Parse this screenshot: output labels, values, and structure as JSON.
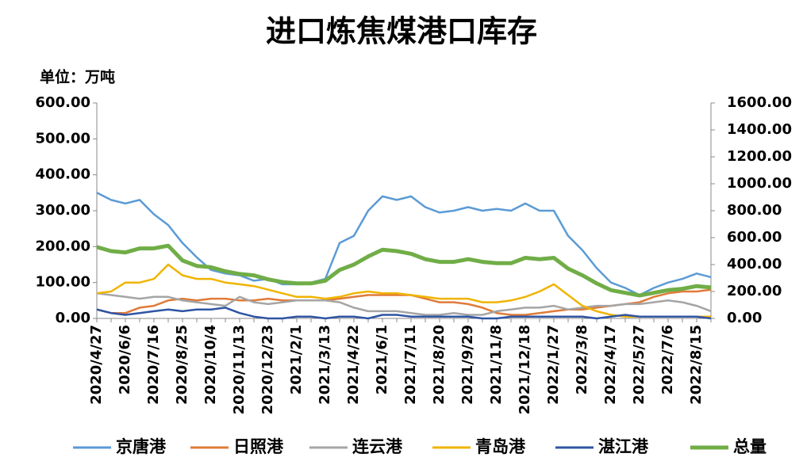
{
  "chart_data": {
    "type": "line",
    "title": "进口炼焦煤港口库存",
    "unit_label": "单位：万吨",
    "legend": "bottom",
    "categories": [
      "2020/4/27",
      null,
      "2020/6/6",
      null,
      "2020/7/16",
      null,
      "2020/8/25",
      null,
      "2020/10/4",
      null,
      "2020/11/13",
      null,
      "2020/12/23",
      null,
      "2021/2/1",
      null,
      "2021/3/13",
      null,
      "2021/4/22",
      null,
      "2021/6/1",
      null,
      "2021/7/11",
      null,
      "2021/8/20",
      null,
      "2021/9/29",
      null,
      "2021/11/8",
      null,
      "2021/12/18",
      null,
      "2022/1/27",
      null,
      "2022/3/8",
      null,
      "2022/4/17",
      null,
      "2022/5/27",
      null,
      "2022/7/6",
      null,
      "2022/8/15",
      null
    ],
    "ylim": [
      0,
      600
    ],
    "yticks": [
      {
        "value": 0,
        "label": "0.00"
      },
      {
        "value": 100,
        "label": "100.00"
      },
      {
        "value": 200,
        "label": "200.00"
      },
      {
        "value": 300,
        "label": "300.00"
      },
      {
        "value": 400,
        "label": "400.00"
      },
      {
        "value": 500,
        "label": "500.00"
      },
      {
        "value": 600,
        "label": "600.00"
      }
    ],
    "y2lim": [
      0,
      1600
    ],
    "y2ticks": [
      {
        "value": 0,
        "label": "0.00"
      },
      {
        "value": 200,
        "label": "200.00"
      },
      {
        "value": 400,
        "label": "400.00"
      },
      {
        "value": 600,
        "label": "600.00"
      },
      {
        "value": 800,
        "label": "800.00"
      },
      {
        "value": 1000,
        "label": "1000.00"
      },
      {
        "value": 1200,
        "label": "1200.00"
      },
      {
        "value": 1400,
        "label": "1400.00"
      },
      {
        "value": 1600,
        "label": "1600.00"
      }
    ],
    "series": [
      {
        "name": "京唐港",
        "color": "#5b9bd5",
        "values": [
          350,
          330,
          320,
          330,
          290,
          260,
          210,
          170,
          135,
          125,
          120,
          105,
          110,
          95,
          95,
          100,
          110,
          210,
          230,
          300,
          340,
          330,
          340,
          310,
          295,
          300,
          310,
          300,
          305,
          300,
          320,
          300,
          300,
          230,
          190,
          140,
          100,
          85,
          65,
          85,
          100,
          110,
          125,
          115
        ]
      },
      {
        "name": "日照港",
        "color": "#e07b39",
        "values": [
          25,
          15,
          15,
          30,
          35,
          50,
          55,
          50,
          55,
          55,
          50,
          50,
          55,
          50,
          50,
          50,
          50,
          55,
          60,
          65,
          65,
          65,
          65,
          55,
          45,
          45,
          40,
          30,
          15,
          10,
          10,
          15,
          20,
          25,
          25,
          30,
          35,
          40,
          45,
          60,
          70,
          75,
          75,
          80
        ]
      },
      {
        "name": "连云港",
        "color": "#a5a5a5",
        "values": [
          70,
          65,
          60,
          55,
          60,
          60,
          50,
          45,
          40,
          35,
          60,
          45,
          40,
          45,
          50,
          50,
          50,
          45,
          30,
          20,
          20,
          20,
          15,
          10,
          10,
          15,
          10,
          10,
          20,
          25,
          30,
          30,
          35,
          25,
          30,
          35,
          35,
          40,
          40,
          45,
          50,
          45,
          35,
          20
        ]
      },
      {
        "name": "青岛港",
        "color": "#f0b400",
        "values": [
          70,
          75,
          100,
          100,
          110,
          150,
          120,
          110,
          110,
          100,
          95,
          90,
          80,
          70,
          60,
          60,
          55,
          60,
          70,
          75,
          70,
          70,
          65,
          60,
          55,
          55,
          55,
          45,
          45,
          50,
          60,
          75,
          95,
          65,
          35,
          20,
          10,
          5,
          5,
          5,
          5,
          5,
          5,
          5
        ]
      },
      {
        "name": "湛江港",
        "color": "#2f55a4",
        "values": [
          25,
          15,
          10,
          15,
          20,
          25,
          20,
          25,
          25,
          30,
          15,
          5,
          0,
          0,
          5,
          5,
          0,
          5,
          5,
          0,
          10,
          10,
          5,
          5,
          5,
          5,
          5,
          0,
          0,
          5,
          5,
          5,
          5,
          5,
          5,
          0,
          5,
          10,
          5,
          5,
          5,
          5,
          5,
          0
        ]
      },
      {
        "name": "总量",
        "color": "#70ad47",
        "axis": "y2",
        "values": [
          530,
          500,
          490,
          520,
          520,
          540,
          430,
          390,
          380,
          350,
          330,
          320,
          290,
          270,
          260,
          260,
          280,
          360,
          400,
          460,
          510,
          500,
          480,
          440,
          420,
          420,
          440,
          420,
          410,
          410,
          450,
          440,
          450,
          370,
          320,
          260,
          210,
          190,
          170,
          190,
          210,
          220,
          240,
          230
        ]
      }
    ]
  }
}
